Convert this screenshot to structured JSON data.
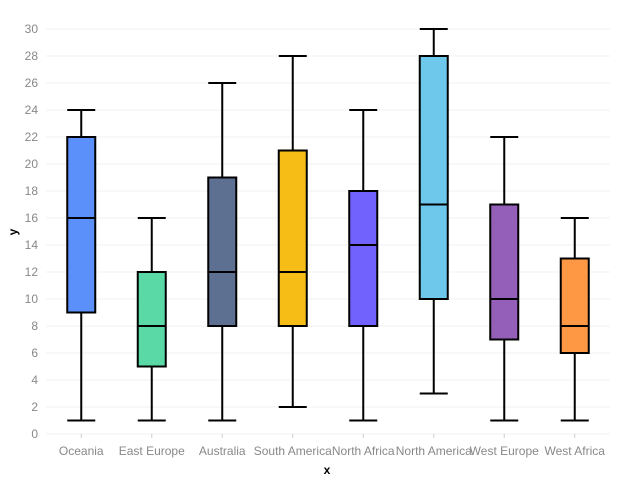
{
  "chart_data": {
    "type": "box",
    "xlabel": "x",
    "ylabel": "y",
    "ylim": [
      0,
      30
    ],
    "yticks": [
      0,
      2,
      4,
      6,
      8,
      10,
      12,
      14,
      16,
      18,
      20,
      22,
      24,
      26,
      28,
      30
    ],
    "grid": true,
    "categories": [
      "Oceania",
      "East Europe",
      "Australia",
      "South America",
      "North Africa",
      "North America",
      "West Europe",
      "West Africa"
    ],
    "boxes": [
      {
        "category": "Oceania",
        "min": 1,
        "q1": 9,
        "median": 16,
        "q3": 22,
        "max": 24,
        "color": "#5b8ff9"
      },
      {
        "category": "East Europe",
        "min": 1,
        "q1": 5,
        "median": 8,
        "q3": 12,
        "max": 16,
        "color": "#5ad8a6"
      },
      {
        "category": "Australia",
        "min": 1,
        "q1": 8,
        "median": 12,
        "q3": 19,
        "max": 26,
        "color": "#5d7092"
      },
      {
        "category": "South America",
        "min": 2,
        "q1": 8,
        "median": 12,
        "q3": 21,
        "max": 28,
        "color": "#f6bd16"
      },
      {
        "category": "North Africa",
        "min": 1,
        "q1": 8,
        "median": 14,
        "q3": 18,
        "max": 24,
        "color": "#7262fd"
      },
      {
        "category": "North America",
        "min": 3,
        "q1": 10,
        "median": 17,
        "q3": 28,
        "max": 30,
        "color": "#6dc8ec"
      },
      {
        "category": "West Europe",
        "min": 1,
        "q1": 7,
        "median": 10,
        "q3": 17,
        "max": 22,
        "color": "#945fb9"
      },
      {
        "category": "West Africa",
        "min": 1,
        "q1": 6,
        "median": 8,
        "q3": 13,
        "max": 16,
        "color": "#ff9845"
      }
    ]
  }
}
